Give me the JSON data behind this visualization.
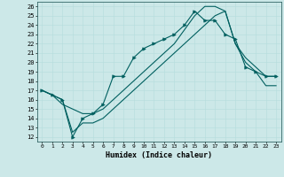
{
  "xlabel": "Humidex (Indice chaleur)",
  "xlim": [
    -0.5,
    23.5
  ],
  "ylim": [
    11.5,
    26.5
  ],
  "yticks": [
    12,
    13,
    14,
    15,
    16,
    17,
    18,
    19,
    20,
    21,
    22,
    23,
    24,
    25,
    26
  ],
  "xticks": [
    0,
    1,
    2,
    3,
    4,
    5,
    6,
    7,
    8,
    9,
    10,
    11,
    12,
    13,
    14,
    15,
    16,
    17,
    18,
    19,
    20,
    21,
    22,
    23
  ],
  "bg_color": "#cce8e8",
  "grid_color": "#aadddd",
  "line_color": "#005f5f",
  "line_main": [
    17.0,
    16.5,
    16.0,
    12.0,
    14.0,
    14.5,
    15.5,
    18.5,
    18.5,
    20.5,
    21.5,
    22.0,
    22.5,
    23.0,
    24.0,
    25.5,
    24.5,
    24.5,
    23.0,
    22.5,
    19.5,
    19.0,
    18.5,
    18.5
  ],
  "line_upper": [
    17.0,
    16.5,
    15.5,
    15.0,
    14.5,
    14.5,
    15.0,
    16.0,
    17.0,
    18.0,
    19.0,
    20.0,
    21.0,
    22.0,
    23.5,
    25.0,
    26.0,
    26.0,
    25.5,
    22.0,
    20.5,
    19.5,
    18.5,
    18.5
  ],
  "line_lower": [
    17.0,
    16.5,
    16.0,
    12.5,
    13.5,
    13.5,
    14.0,
    15.0,
    16.0,
    17.0,
    18.0,
    19.0,
    20.0,
    21.0,
    22.0,
    23.0,
    24.0,
    25.0,
    25.5,
    22.0,
    20.0,
    19.0,
    17.5,
    17.5
  ]
}
